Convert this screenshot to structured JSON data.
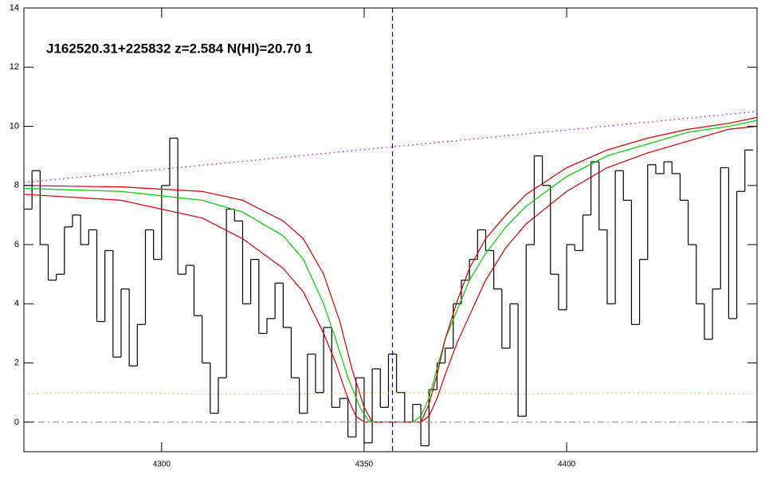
{
  "chart_data": {
    "type": "line",
    "title": "J162520.31+225832 z=2.584 N(HI)=20.70 1",
    "xlim": [
      4266,
      4447
    ],
    "ylim": [
      -1,
      14
    ],
    "xticks": [
      4300,
      4350,
      4400
    ],
    "yticks": [
      0,
      2,
      4,
      6,
      8,
      10,
      12,
      14
    ],
    "vline": {
      "x": 4357,
      "color": "#0000aa"
    },
    "series": [
      {
        "style": "step",
        "color": "#000000",
        "x": [
          4267,
          4269,
          4271,
          4273,
          4275,
          4277,
          4279,
          4281,
          4283,
          4285,
          4287,
          4289,
          4291,
          4293,
          4295,
          4297,
          4299,
          4301,
          4303,
          4305,
          4307,
          4309,
          4311,
          4313,
          4315,
          4317,
          4319,
          4321,
          4323,
          4325,
          4327,
          4329,
          4331,
          4333,
          4335,
          4337,
          4339,
          4341,
          4343,
          4345,
          4347,
          4349,
          4351,
          4353,
          4355,
          4357,
          4359,
          4361,
          4363,
          4365,
          4367,
          4369,
          4371,
          4373,
          4375,
          4377,
          4379,
          4381,
          4383,
          4385,
          4387,
          4389,
          4391,
          4393,
          4395,
          4397,
          4399,
          4401,
          4403,
          4405,
          4407,
          4409,
          4411,
          4413,
          4415,
          4417,
          4419,
          4421,
          4423,
          4425,
          4427,
          4429,
          4431,
          4433,
          4435,
          4437,
          4439,
          4441,
          4443,
          4445
        ],
        "values": [
          7.2,
          8.5,
          6.0,
          4.8,
          5.0,
          6.6,
          7.0,
          6.0,
          6.5,
          3.4,
          5.8,
          2.2,
          4.5,
          1.9,
          3.3,
          6.5,
          5.5,
          8.0,
          9.6,
          5.0,
          5.3,
          3.6,
          2.0,
          0.3,
          1.5,
          7.2,
          6.8,
          4.0,
          5.5,
          3.0,
          3.5,
          4.7,
          3.2,
          1.5,
          0.3,
          2.3,
          1.0,
          3.2,
          0.5,
          0.8,
          -0.5,
          1.5,
          -0.7,
          1.8,
          0.5,
          2.3,
          1.0,
          0.0,
          0.6,
          -0.8,
          1.1,
          2.0,
          2.5,
          4.0,
          4.8,
          5.5,
          6.5,
          5.8,
          4.5,
          2.5,
          4.0,
          0.2,
          6.0,
          9.0,
          8.0,
          5.0,
          3.8,
          6.0,
          5.8,
          7.0,
          8.8,
          6.5,
          4.0,
          8.5,
          7.5,
          3.3,
          5.5,
          8.7,
          8.4,
          8.8,
          8.4,
          7.5,
          6.0,
          4.0,
          2.8,
          4.5,
          8.6,
          3.5,
          7.8,
          9.2
        ]
      },
      {
        "style": "solid",
        "color": "#00cc00",
        "x": [
          4266,
          4290,
          4310,
          4320,
          4330,
          4335,
          4340,
          4343,
          4346,
          4349,
          4351,
          4353,
          4362,
          4364,
          4366,
          4368,
          4370,
          4373,
          4376,
          4380,
          4385,
          4390,
          4400,
          4410,
          4420,
          4430,
          4440,
          4447
        ],
        "values": [
          7.9,
          7.8,
          7.5,
          7.1,
          6.3,
          5.5,
          4.0,
          2.8,
          1.5,
          0.5,
          0.05,
          0,
          0,
          0.2,
          0.8,
          1.8,
          2.8,
          3.8,
          4.8,
          5.7,
          6.6,
          7.3,
          8.3,
          9.0,
          9.4,
          9.8,
          10.0,
          10.2
        ]
      },
      {
        "style": "solid",
        "color": "#cc0000",
        "x": [
          4266,
          4290,
          4310,
          4320,
          4330,
          4335,
          4340,
          4344,
          4347,
          4350,
          4352,
          4364,
          4366,
          4368,
          4370,
          4373,
          4376,
          4380,
          4385,
          4390,
          4400,
          4410,
          4420,
          4430,
          4440,
          4447
        ],
        "values": [
          8.0,
          7.95,
          7.8,
          7.5,
          6.8,
          6.2,
          5.0,
          3.4,
          1.8,
          0.5,
          0,
          0,
          0.6,
          1.6,
          2.8,
          4.1,
          5.2,
          6.2,
          7.0,
          7.7,
          8.6,
          9.2,
          9.6,
          9.9,
          10.1,
          10.3
        ]
      },
      {
        "style": "solid",
        "color": "#cc0000",
        "x": [
          4266,
          4290,
          4310,
          4320,
          4330,
          4335,
          4340,
          4343,
          4346,
          4348,
          4350,
          4364,
          4366,
          4368,
          4370,
          4373,
          4376,
          4380,
          4385,
          4390,
          4400,
          4410,
          4420,
          4430,
          4440,
          4447
        ],
        "values": [
          7.7,
          7.5,
          6.9,
          6.2,
          5.2,
          4.4,
          3.0,
          2.0,
          0.8,
          0.2,
          0,
          0,
          0.2,
          0.8,
          1.6,
          2.7,
          3.6,
          4.8,
          5.9,
          6.7,
          7.8,
          8.6,
          9.1,
          9.5,
          9.9,
          10.0
        ]
      },
      {
        "style": "dotted",
        "color": "#8800ff",
        "x": [
          4266,
          4447
        ],
        "values": [
          8.1,
          10.5
        ]
      },
      {
        "style": "dotted",
        "color": "#ff9933",
        "x": [
          4266,
          4275,
          4290,
          4310,
          4330,
          4360,
          4390,
          4420,
          4447
        ],
        "values": [
          0.95,
          1.0,
          1.0,
          0.95,
          0.95,
          1.0,
          0.95,
          1.0,
          0.95
        ]
      },
      {
        "style": "dashdot",
        "color": "#999999",
        "x": [
          4266,
          4447
        ],
        "values": [
          0,
          0
        ]
      }
    ]
  }
}
